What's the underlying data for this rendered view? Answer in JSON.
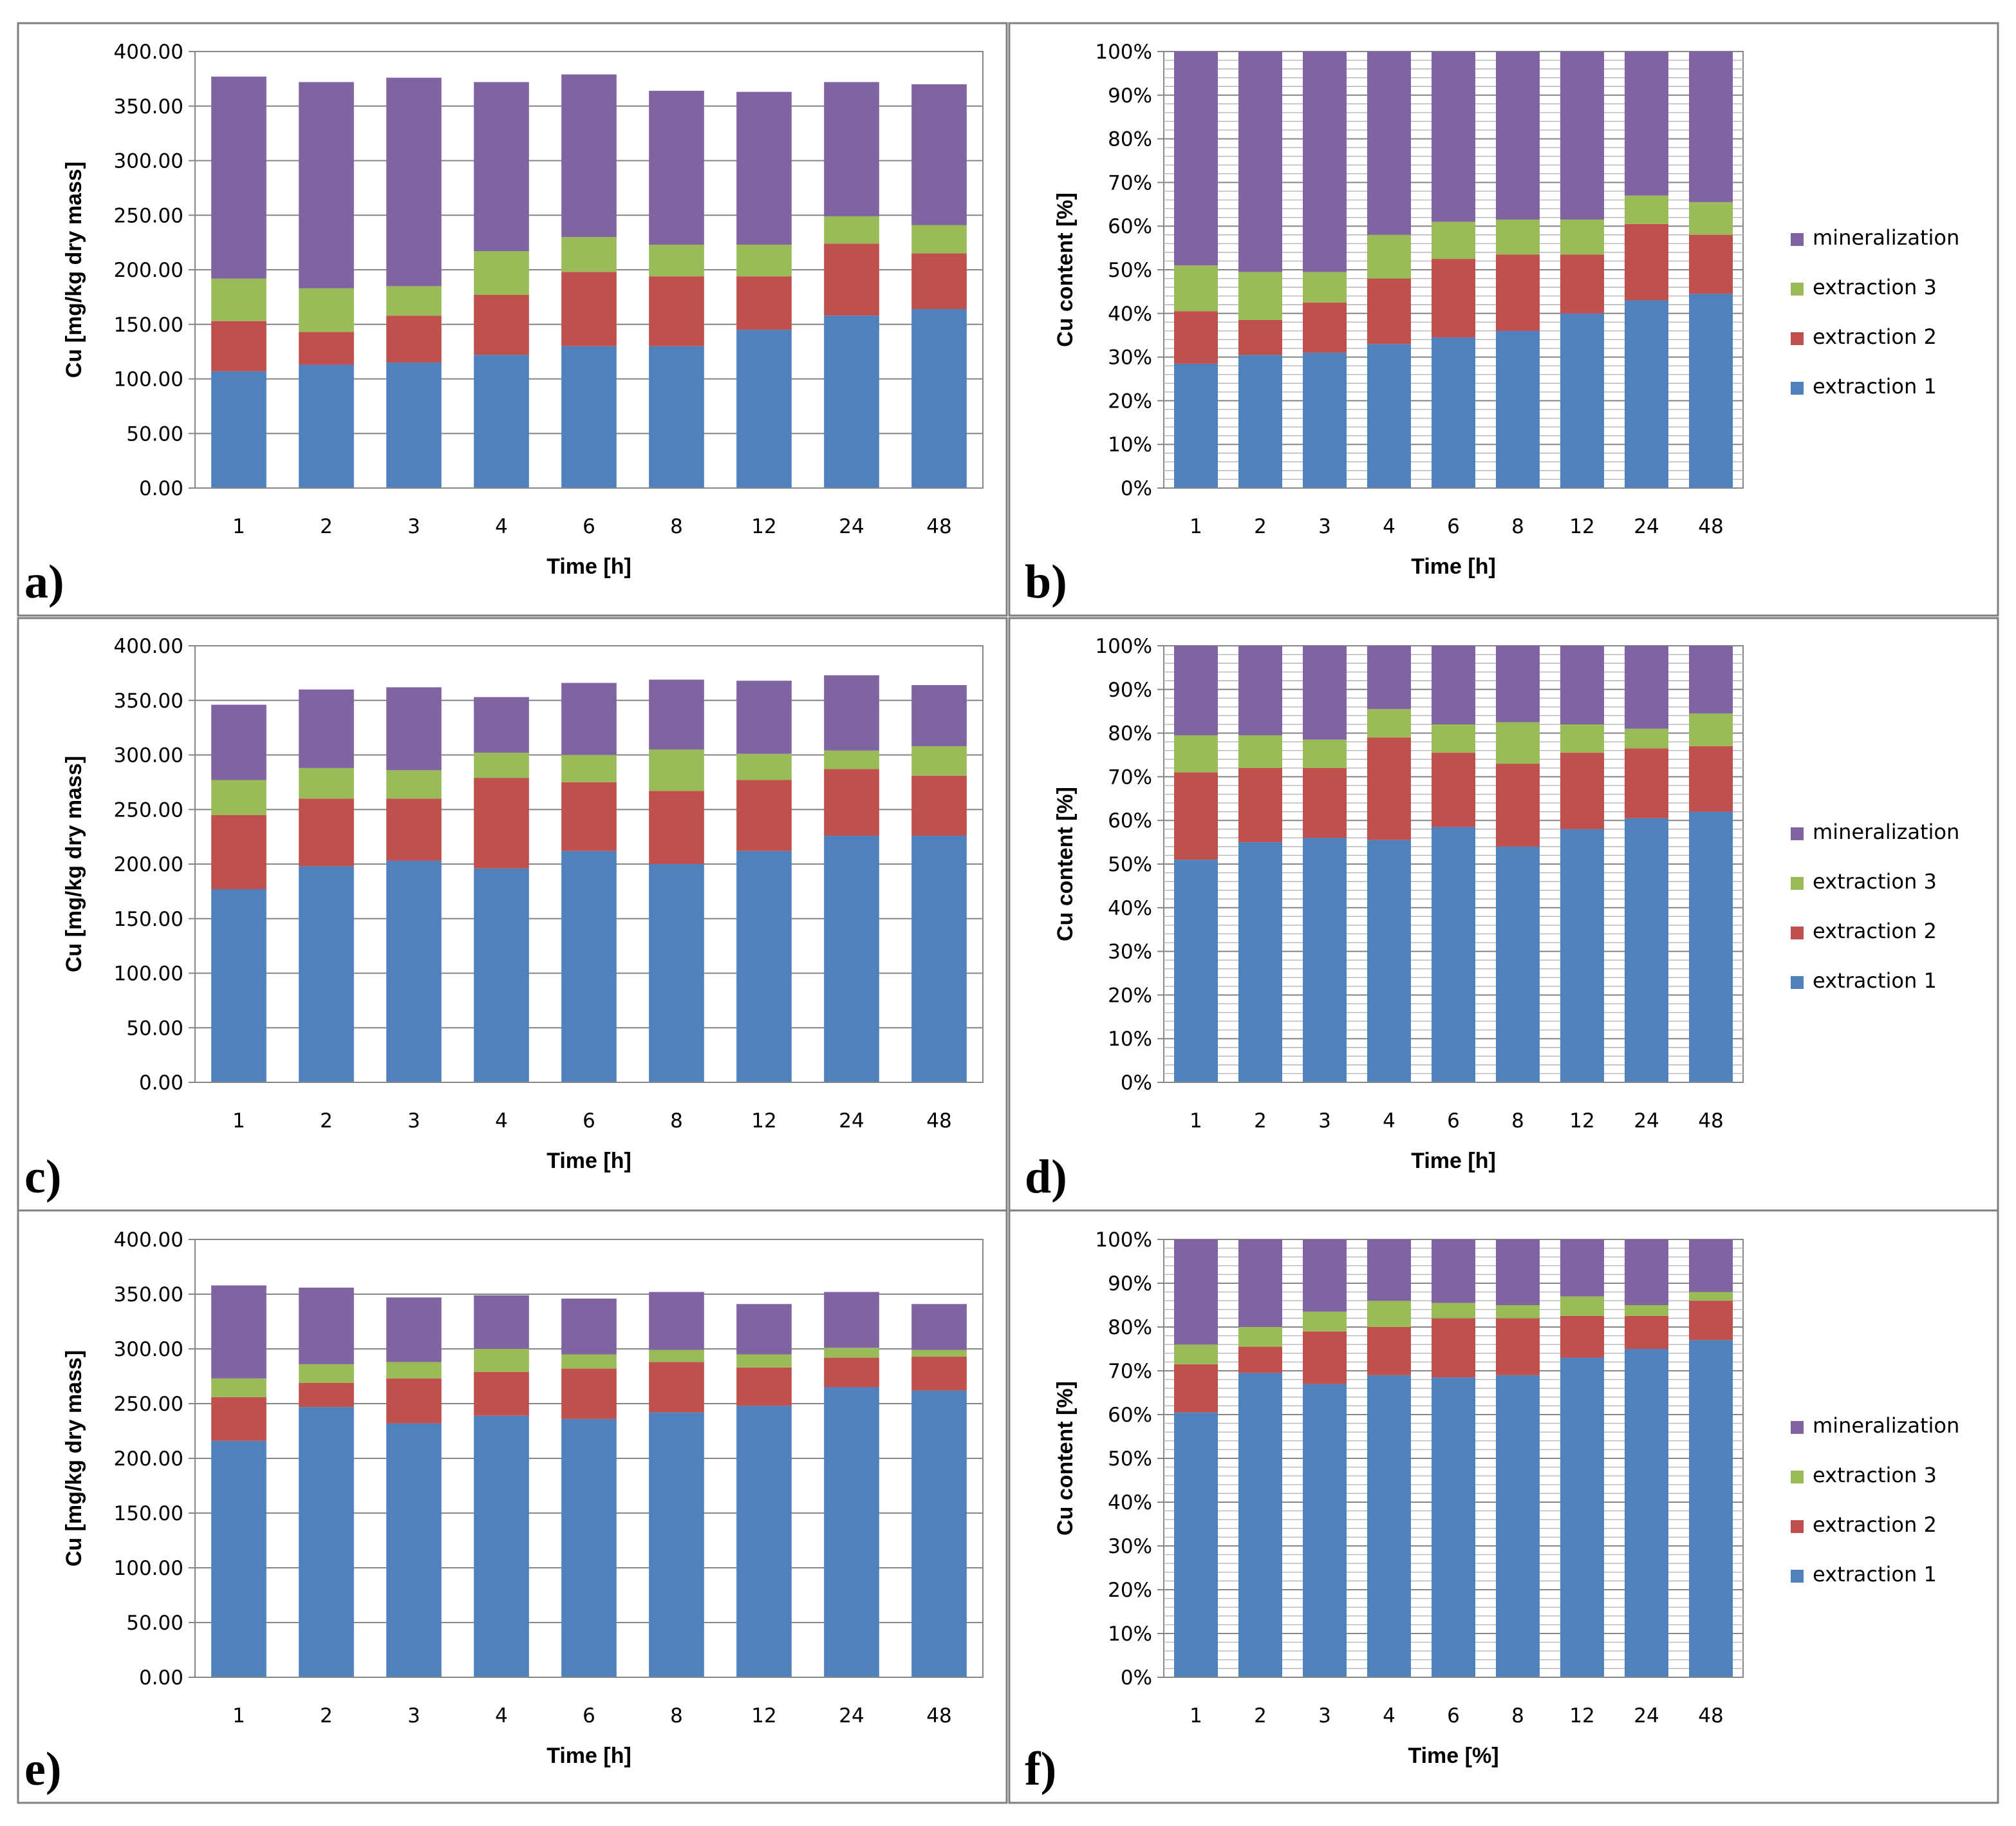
{
  "colors": {
    "extraction 1": "#4F81BD",
    "extraction 2": "#C0504D",
    "extraction 3": "#9BBB59",
    "mineralization": "#8064A2"
  },
  "legend": [
    "mineralization",
    "extraction 3",
    "extraction 2",
    "extraction 1"
  ],
  "chart_data": [
    {
      "panel": "a)",
      "type": "bar",
      "stacked": true,
      "xlabel": "Time [h]",
      "ylabel": "Cu [mg/kg dry mass]",
      "ylim": [
        0,
        400
      ],
      "yticks": [
        "0.00",
        "50.00",
        "100.00",
        "150.00",
        "200.00",
        "250.00",
        "300.00",
        "350.00",
        "400.00"
      ],
      "categories": [
        "1",
        "2",
        "3",
        "4",
        "6",
        "8",
        "12",
        "24",
        "48"
      ],
      "series": [
        {
          "name": "extraction 1",
          "values": [
            107,
            113,
            115,
            122,
            130,
            130,
            145,
            158,
            164
          ]
        },
        {
          "name": "extraction 2",
          "values": [
            46,
            30,
            43,
            55,
            68,
            64,
            49,
            66,
            51
          ]
        },
        {
          "name": "extraction 3",
          "values": [
            39,
            40,
            27,
            40,
            32,
            29,
            29,
            25,
            26
          ]
        },
        {
          "name": "mineralization",
          "values": [
            185,
            189,
            191,
            155,
            149,
            141,
            140,
            123,
            129
          ]
        }
      ]
    },
    {
      "panel": "b)",
      "type": "bar",
      "stacked": true,
      "percent": true,
      "legend": true,
      "xlabel": "Time [h]",
      "ylabel": "Cu content [%]",
      "ylim": [
        0,
        100
      ],
      "yticks": [
        "0%",
        "10%",
        "20%",
        "30%",
        "40%",
        "50%",
        "60%",
        "70%",
        "80%",
        "90%",
        "100%"
      ],
      "categories": [
        "1",
        "2",
        "3",
        "4",
        "6",
        "8",
        "12",
        "24",
        "48"
      ],
      "series": [
        {
          "name": "extraction 1",
          "values": [
            28.5,
            30.5,
            31,
            33,
            34.5,
            36,
            40,
            43,
            44.5
          ]
        },
        {
          "name": "extraction 2",
          "values": [
            12,
            8,
            11.5,
            15,
            18,
            17.5,
            13.5,
            17.5,
            13.5
          ]
        },
        {
          "name": "extraction 3",
          "values": [
            10.5,
            11,
            7,
            10,
            8.5,
            8,
            8,
            6.5,
            7.5
          ]
        },
        {
          "name": "mineralization",
          "values": [
            49,
            50.5,
            50.5,
            42,
            39,
            38.5,
            38.5,
            33,
            34.5
          ]
        }
      ]
    },
    {
      "panel": "c)",
      "type": "bar",
      "stacked": true,
      "xlabel": "Time [h]",
      "ylabel": "Cu [mg/kg dry mass]",
      "ylim": [
        0,
        400
      ],
      "yticks": [
        "0.00",
        "50.00",
        "100.00",
        "150.00",
        "200.00",
        "250.00",
        "300.00",
        "350.00",
        "400.00"
      ],
      "categories": [
        "1",
        "2",
        "3",
        "4",
        "6",
        "8",
        "12",
        "24",
        "48"
      ],
      "series": [
        {
          "name": "extraction 1",
          "values": [
            177,
            198,
            203,
            196,
            212,
            200,
            212,
            226,
            226
          ]
        },
        {
          "name": "extraction 2",
          "values": [
            68,
            62,
            57,
            83,
            63,
            67,
            65,
            61,
            55
          ]
        },
        {
          "name": "extraction 3",
          "values": [
            32,
            28,
            26,
            23,
            25,
            38,
            24,
            17,
            27
          ]
        },
        {
          "name": "mineralization",
          "values": [
            69,
            72,
            76,
            51,
            66,
            64,
            67,
            69,
            56
          ]
        }
      ]
    },
    {
      "panel": "d)",
      "type": "bar",
      "stacked": true,
      "percent": true,
      "legend": true,
      "xlabel": "Time [h]",
      "ylabel": "Cu content [%]",
      "ylim": [
        0,
        100
      ],
      "yticks": [
        "0%",
        "10%",
        "20%",
        "30%",
        "40%",
        "50%",
        "60%",
        "70%",
        "80%",
        "90%",
        "100%"
      ],
      "categories": [
        "1",
        "2",
        "3",
        "4",
        "6",
        "8",
        "12",
        "24",
        "48"
      ],
      "series": [
        {
          "name": "extraction 1",
          "values": [
            51,
            55,
            56,
            55.5,
            58.5,
            54,
            58,
            60.5,
            62
          ]
        },
        {
          "name": "extraction 2",
          "values": [
            20,
            17,
            16,
            23.5,
            17,
            19,
            17.5,
            16,
            15
          ]
        },
        {
          "name": "extraction 3",
          "values": [
            8.5,
            7.5,
            6.5,
            6.5,
            6.5,
            9.5,
            6.5,
            4.5,
            7.5
          ]
        },
        {
          "name": "mineralization",
          "values": [
            20.5,
            20.5,
            21.5,
            14.5,
            18,
            17.5,
            18,
            19,
            15.5
          ]
        }
      ]
    },
    {
      "panel": "e)",
      "type": "bar",
      "stacked": true,
      "xlabel": "Time [h]",
      "ylabel": "Cu [mg/kg dry mass]",
      "ylim": [
        0,
        400
      ],
      "yticks": [
        "0.00",
        "50.00",
        "100.00",
        "150.00",
        "200.00",
        "250.00",
        "300.00",
        "350.00",
        "400.00"
      ],
      "categories": [
        "1",
        "2",
        "3",
        "4",
        "6",
        "8",
        "12",
        "24",
        "48"
      ],
      "series": [
        {
          "name": "extraction 1",
          "values": [
            216,
            247,
            232,
            239,
            236,
            242,
            248,
            265,
            262
          ]
        },
        {
          "name": "extraction 2",
          "values": [
            40,
            22,
            41,
            40,
            46,
            46,
            35,
            27,
            31
          ]
        },
        {
          "name": "extraction 3",
          "values": [
            17,
            17,
            15,
            21,
            13,
            11,
            12,
            9,
            6
          ]
        },
        {
          "name": "mineralization",
          "values": [
            85,
            70,
            59,
            49,
            51,
            53,
            46,
            51,
            42
          ]
        }
      ]
    },
    {
      "panel": "f)",
      "type": "bar",
      "stacked": true,
      "percent": true,
      "legend": true,
      "xlabel": "Time [%]",
      "ylabel": "Cu content [%]",
      "ylim": [
        0,
        100
      ],
      "yticks": [
        "0%",
        "10%",
        "20%",
        "30%",
        "40%",
        "50%",
        "60%",
        "70%",
        "80%",
        "90%",
        "100%"
      ],
      "categories": [
        "1",
        "2",
        "3",
        "4",
        "6",
        "8",
        "12",
        "24",
        "48"
      ],
      "series": [
        {
          "name": "extraction 1",
          "values": [
            60.5,
            69.5,
            67,
            69,
            68.5,
            69,
            73,
            75,
            77
          ]
        },
        {
          "name": "extraction 2",
          "values": [
            11,
            6,
            12,
            11,
            13.5,
            13,
            9.5,
            7.5,
            9
          ]
        },
        {
          "name": "extraction 3",
          "values": [
            4.5,
            4.5,
            4.5,
            6,
            3.5,
            3,
            4.5,
            2.5,
            2
          ]
        },
        {
          "name": "mineralization",
          "values": [
            24,
            20,
            16.5,
            14,
            14.5,
            15,
            13,
            15,
            12
          ]
        }
      ]
    }
  ]
}
